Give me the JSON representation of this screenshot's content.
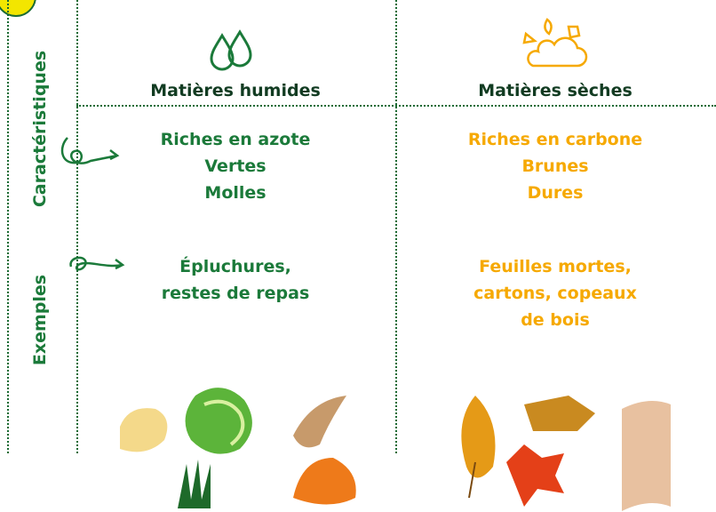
{
  "row_labels": [
    "Caractéristiques",
    "Exemples"
  ],
  "columns": [
    {
      "header": "Matières humides",
      "characteristics": [
        "Riches en azote",
        "Vertes",
        "Molles"
      ],
      "examples": [
        "Épluchures,",
        "restes de repas"
      ]
    },
    {
      "header": "Matières sèches",
      "characteristics": [
        "Riches en carbone",
        "Brunes",
        "Dures"
      ],
      "examples": [
        "Feuilles mortes,",
        "cartons, copeaux",
        "de bois"
      ]
    }
  ]
}
